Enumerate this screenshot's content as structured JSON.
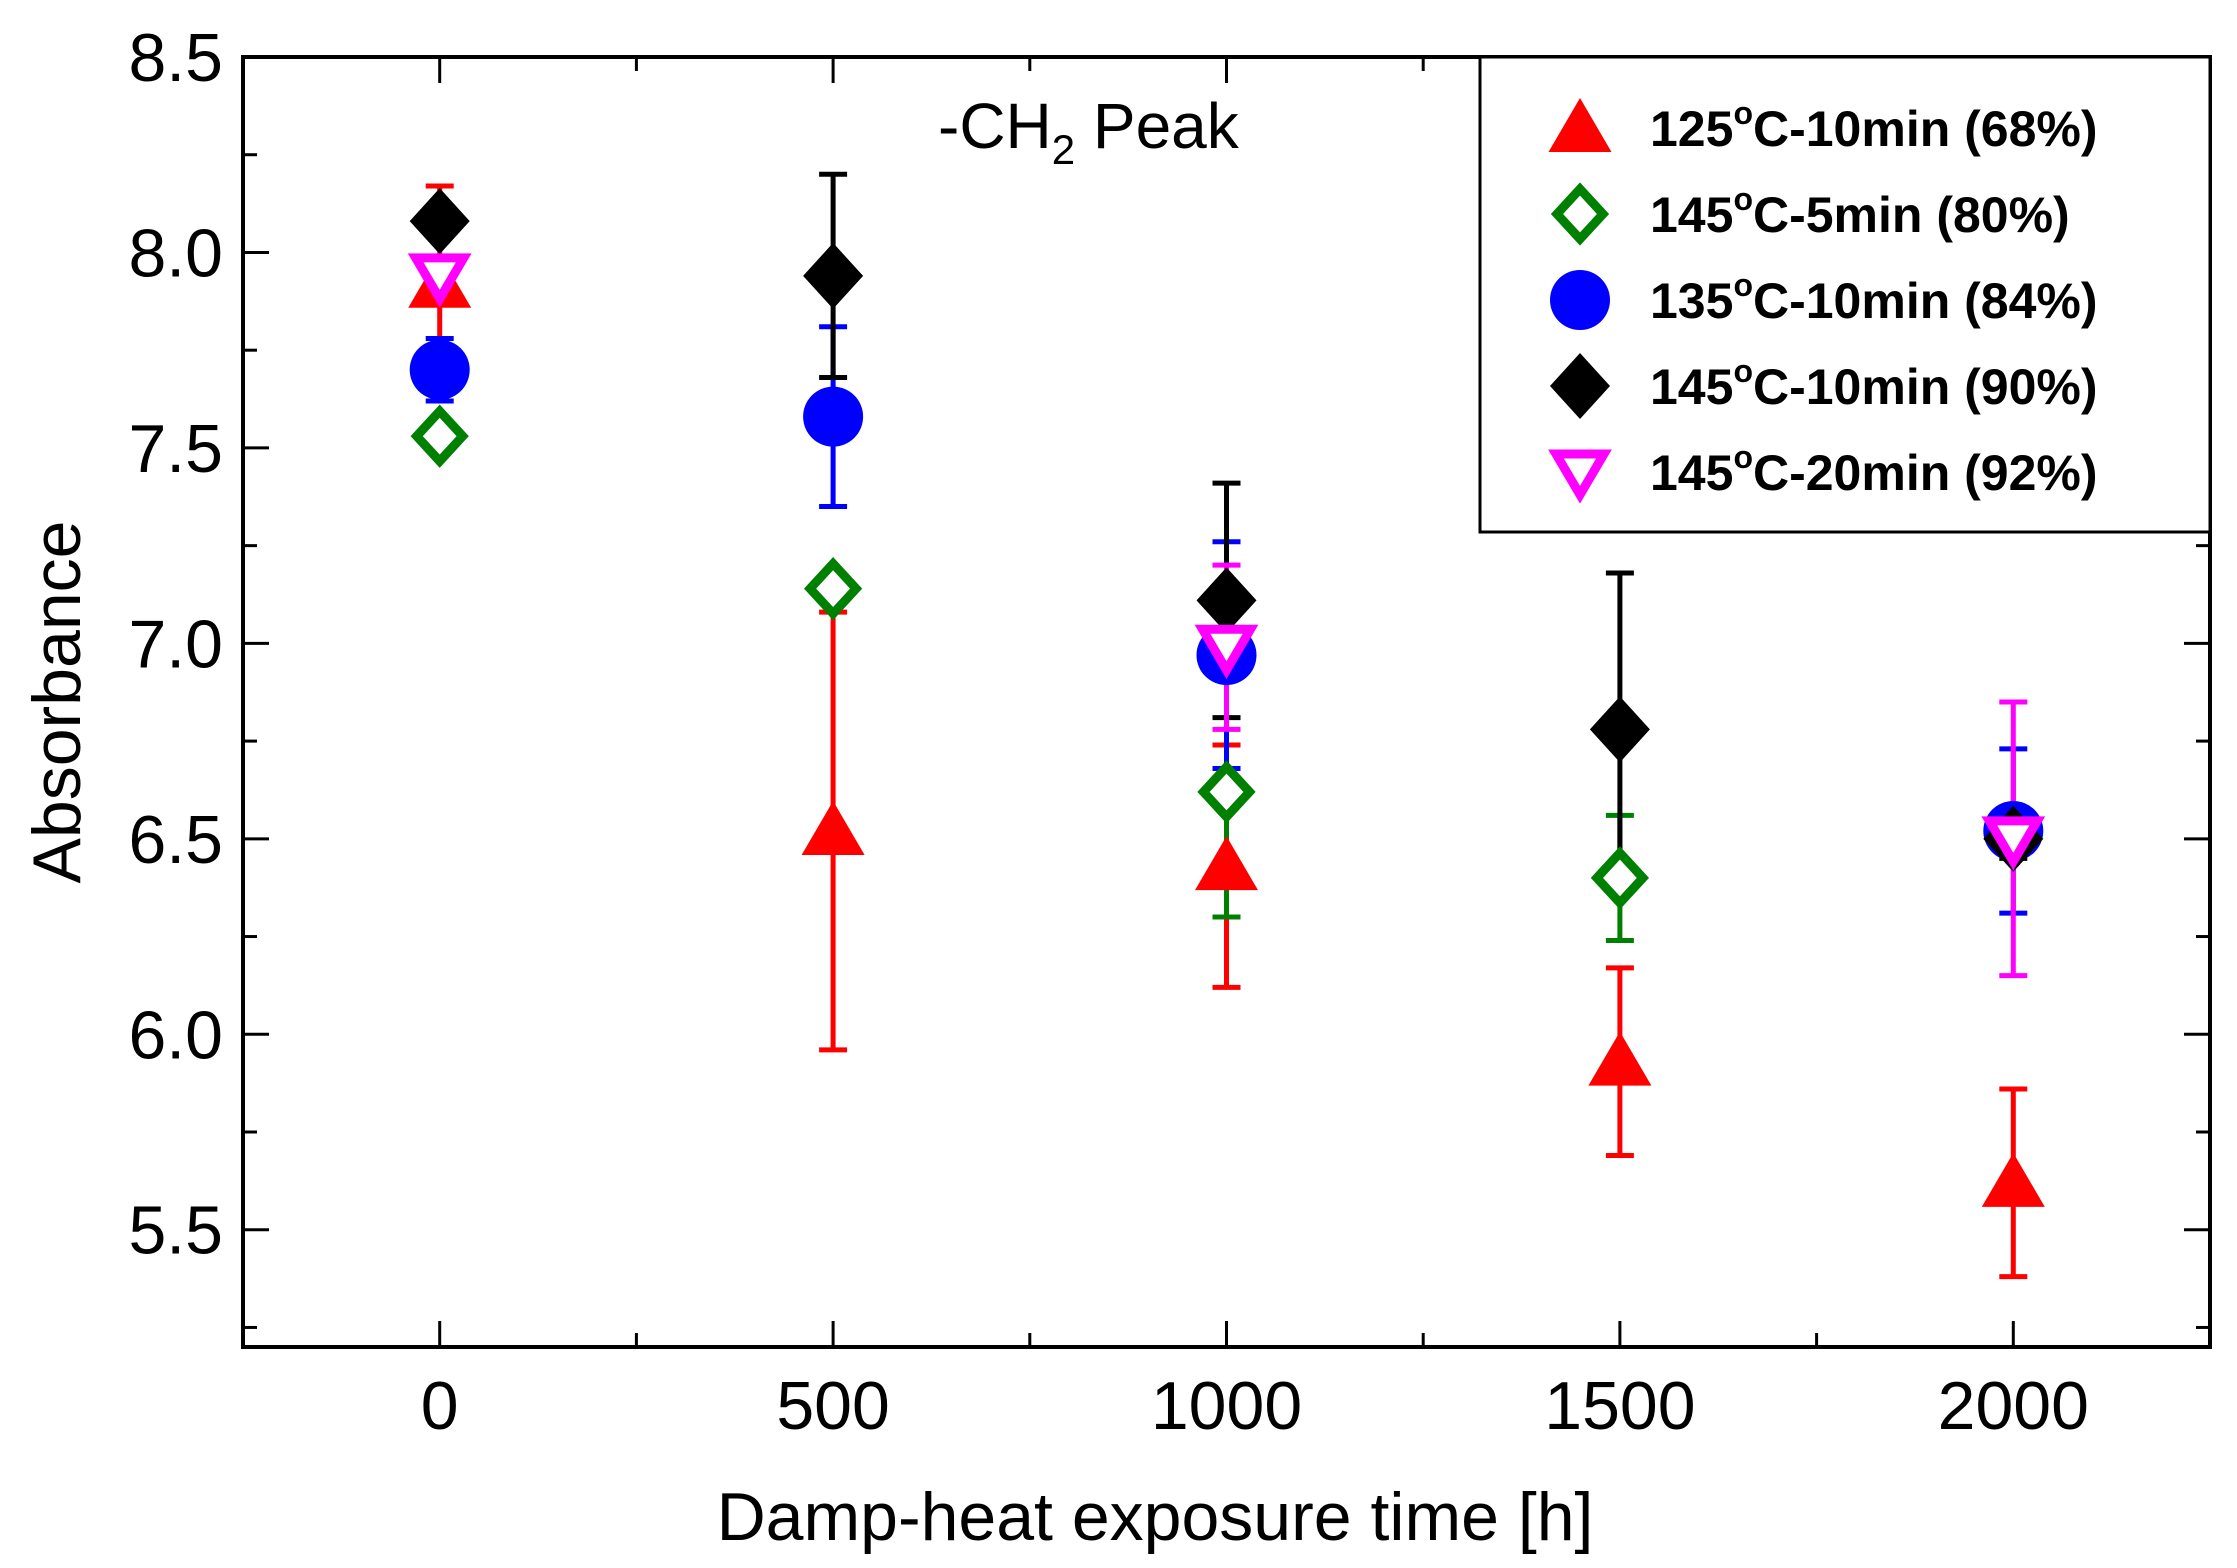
{
  "chart_data": {
    "type": "scatter",
    "title": "",
    "annotation": {
      "prefix": "-CH",
      "subscript": "2",
      "suffix": " Peak"
    },
    "xlabel": "Damp-heat exposure time [h]",
    "ylabel": "Absorbance",
    "xlim": [
      -250,
      2250
    ],
    "ylim": [
      5.2,
      8.5
    ],
    "x_ticks": [
      0,
      500,
      1000,
      1500,
      2000
    ],
    "x_minor_ticks": [
      250,
      750,
      1250,
      1750
    ],
    "x_tick_labels": [
      "0",
      "500",
      "1000",
      "1500",
      "2000"
    ],
    "y_ticks": [
      5.5,
      6.0,
      6.5,
      7.0,
      7.5,
      8.0,
      8.5
    ],
    "y_minor_ticks": [
      5.25,
      5.75,
      6.25,
      6.75,
      7.25,
      7.75,
      8.25
    ],
    "y_tick_labels": [
      "5.5",
      "6.0",
      "6.5",
      "7.0",
      "7.5",
      "8.0",
      "8.5"
    ],
    "grid": false,
    "legend_position": "top-right",
    "series": [
      {
        "name": "125°C-10min (68%)",
        "label_base": "125",
        "label_sup": "o",
        "label_rest": "C-10min (68%)",
        "marker": "triangle-up",
        "color": "#ff0000",
        "filled": true,
        "x": [
          0,
          500,
          1000,
          1500,
          2000
        ],
        "y": [
          7.92,
          6.52,
          6.43,
          5.93,
          5.62
        ],
        "err": [
          0.25,
          0.56,
          0.31,
          0.24,
          0.24
        ]
      },
      {
        "name": "145°C-5min (80%)",
        "label_base": "145",
        "label_sup": "o",
        "label_rest": "C-5min (80%)",
        "marker": "diamond-open",
        "color": "#008000",
        "filled": false,
        "x": [
          0,
          500,
          1000,
          1500,
          2000
        ],
        "y": [
          7.53,
          7.14,
          6.62,
          6.4,
          null
        ],
        "err": [
          0.0,
          0.0,
          0.32,
          0.16,
          null
        ]
      },
      {
        "name": "135°C-10min (84%)",
        "label_base": "135",
        "label_sup": "o",
        "label_rest": "C-10min (84%)",
        "marker": "circle",
        "color": "#0000ff",
        "filled": true,
        "x": [
          0,
          500,
          1000,
          1500,
          2000
        ],
        "y": [
          7.7,
          7.58,
          6.97,
          null,
          6.52
        ],
        "err": [
          0.08,
          0.23,
          0.29,
          null,
          0.21
        ]
      },
      {
        "name": "145°C-10min (90%)",
        "label_base": "145",
        "label_sup": "o",
        "label_rest": "C-10min (90%)",
        "marker": "diamond",
        "color": "#000000",
        "filled": true,
        "x": [
          0,
          500,
          1000,
          1500,
          2000
        ],
        "y": [
          8.08,
          7.94,
          7.11,
          6.78,
          6.5
        ],
        "err": [
          0.0,
          0.26,
          0.3,
          0.4,
          0.05
        ]
      },
      {
        "name": "145°C-20min (92%)",
        "label_base": "145",
        "label_sup": "o",
        "label_rest": "C-20min (92%)",
        "marker": "triangle-down-open",
        "color": "#ff00ff",
        "filled": false,
        "x": [
          0,
          500,
          1000,
          1500,
          2000
        ],
        "y": [
          7.94,
          null,
          6.99,
          null,
          6.5
        ],
        "err": [
          0.0,
          null,
          0.21,
          null,
          0.35
        ]
      }
    ]
  }
}
